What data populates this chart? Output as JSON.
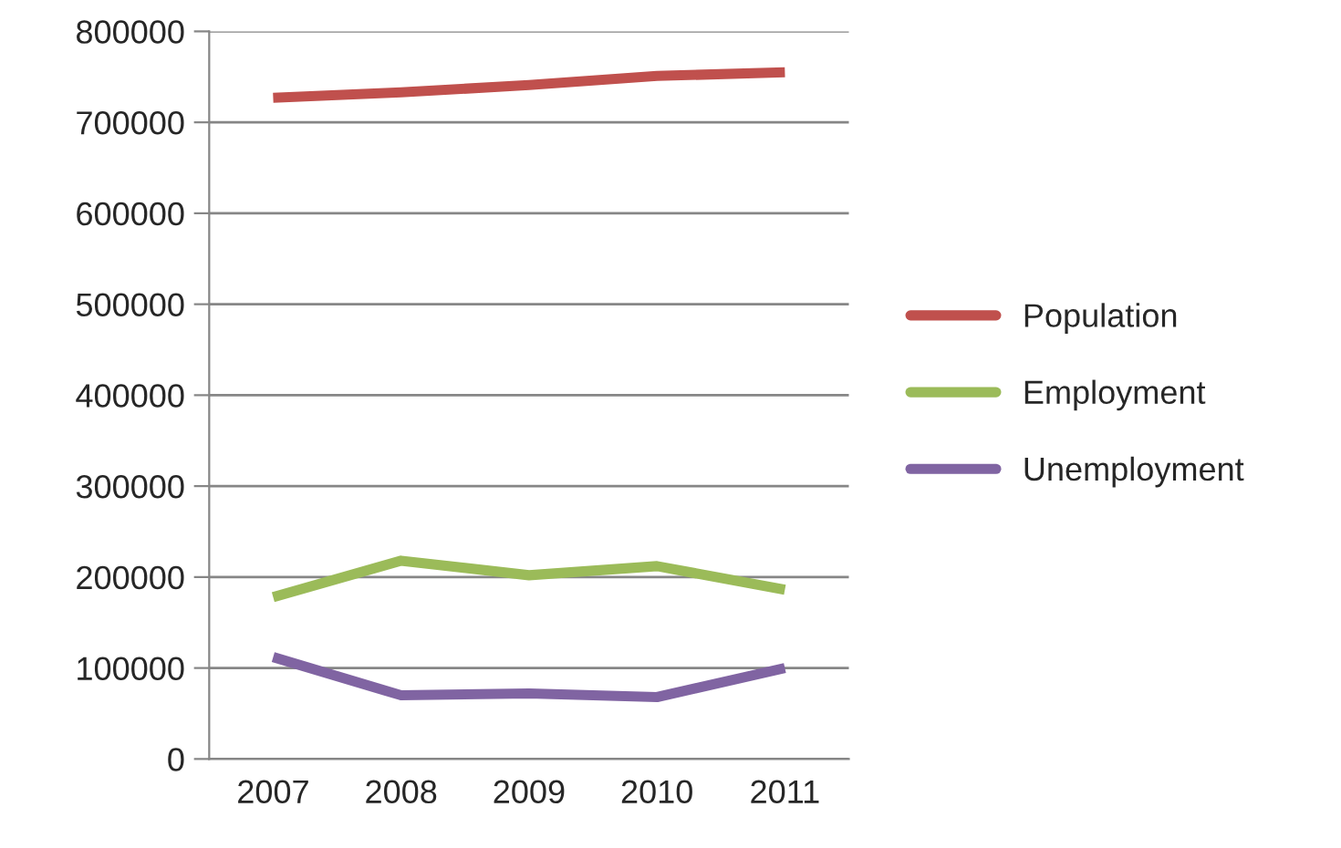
{
  "chart_data": {
    "type": "line",
    "categories": [
      "2007",
      "2008",
      "2009",
      "2010",
      "2011"
    ],
    "series": [
      {
        "name": "Population",
        "color": "#c0504d",
        "values": [
          727000,
          733000,
          741000,
          751000,
          755000
        ]
      },
      {
        "name": "Employment",
        "color": "#9bbb59",
        "values": [
          178000,
          218000,
          202000,
          212000,
          186000
        ]
      },
      {
        "name": "Unemployment",
        "color": "#8064a2",
        "values": [
          112000,
          70000,
          72000,
          68000,
          100000
        ]
      }
    ],
    "ylim": [
      0,
      800000
    ],
    "yticks": [
      0,
      100000,
      200000,
      300000,
      400000,
      500000,
      600000,
      700000,
      800000
    ],
    "grid": "y",
    "legend": "right",
    "marker": "none",
    "line_style": "solid"
  }
}
